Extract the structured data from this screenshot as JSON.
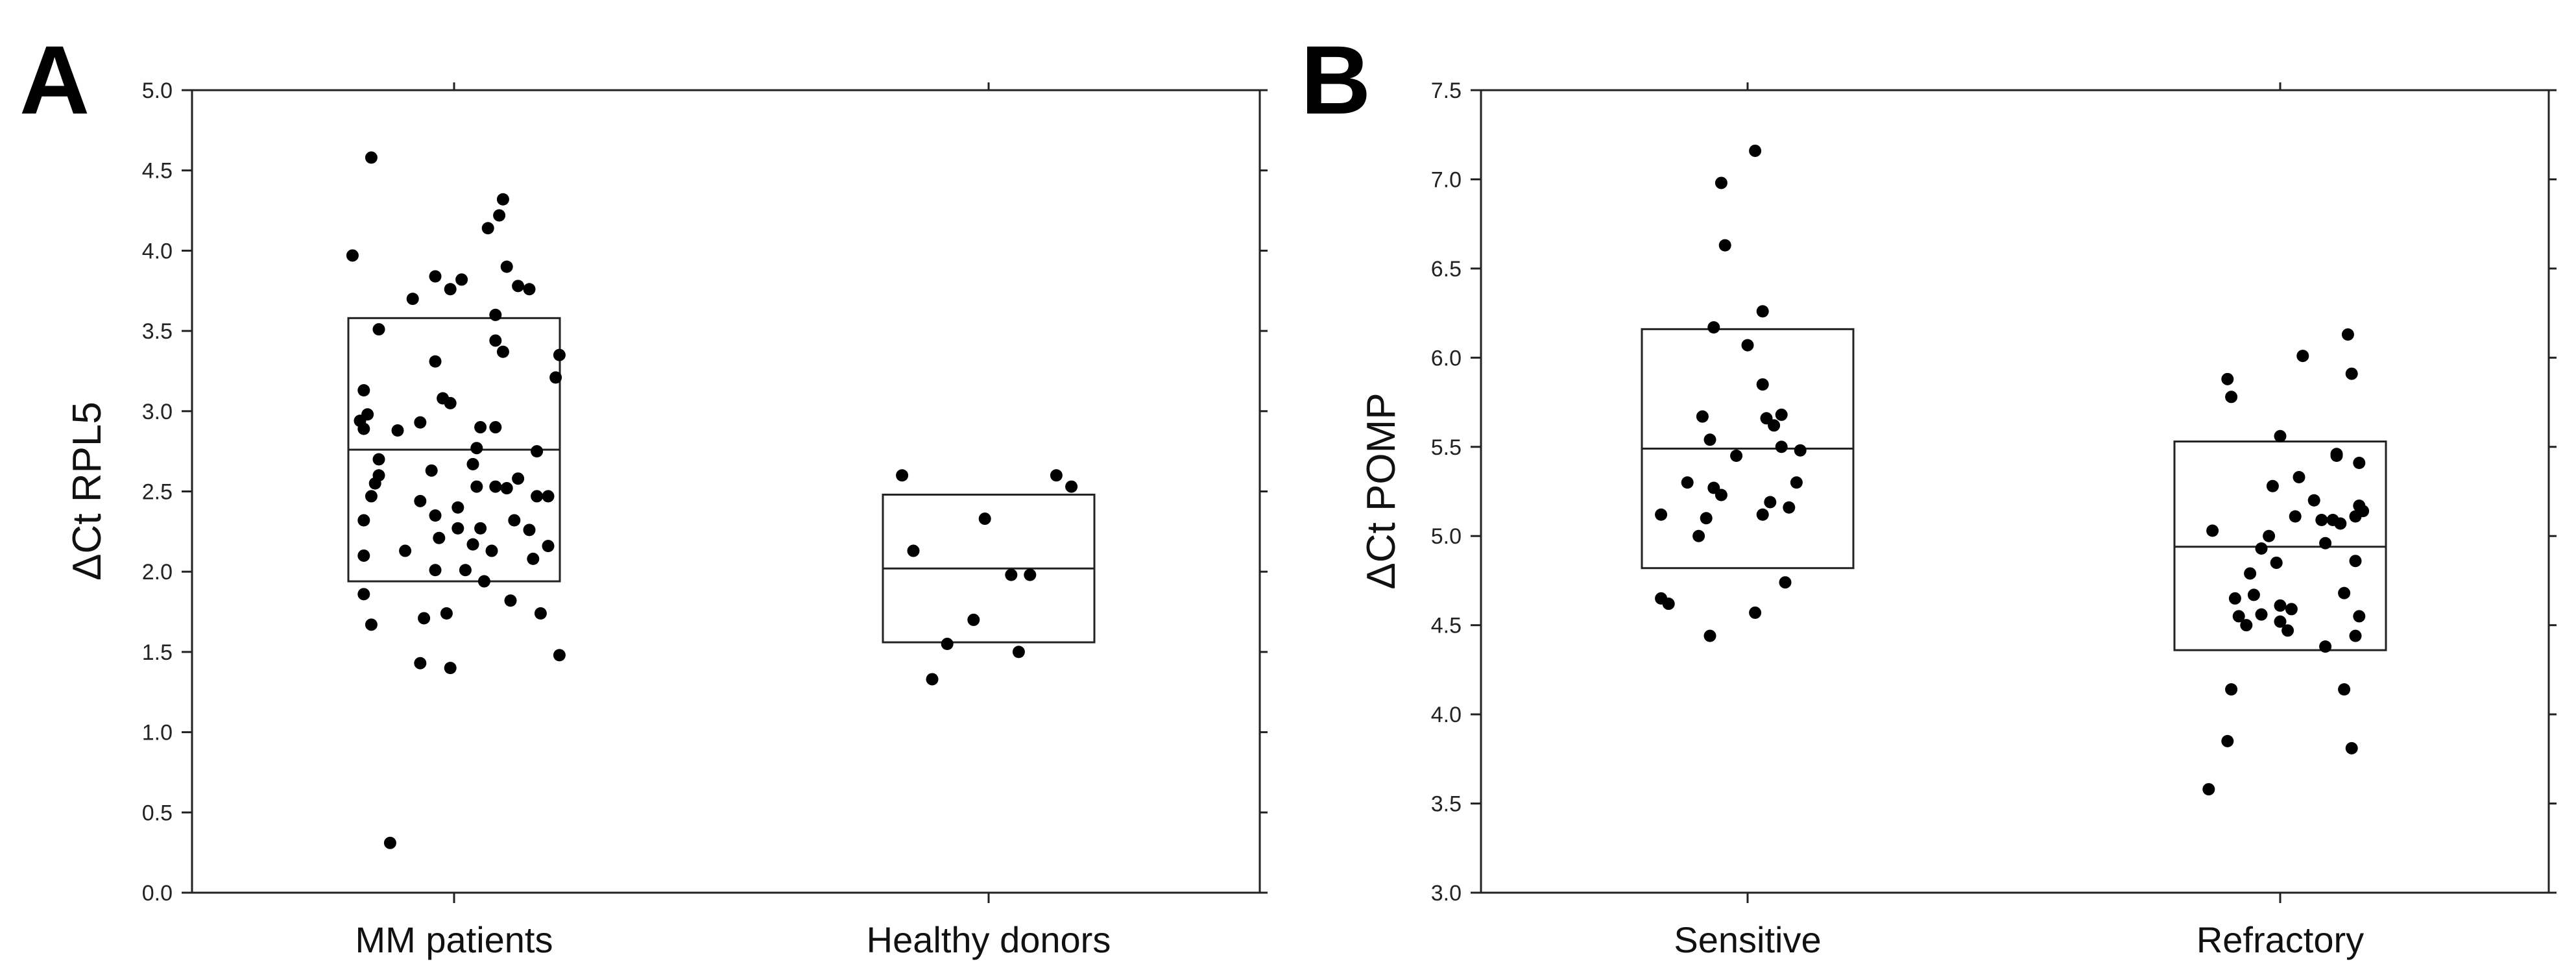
{
  "chart_data": [
    {
      "panel": "A",
      "type": "scatter",
      "ylabel": "ΔCt RPL5",
      "ylim": [
        0,
        5.0
      ],
      "yticks": [
        "0.0",
        "0.5",
        "1.0",
        "1.5",
        "2.0",
        "2.5",
        "3.0",
        "3.5",
        "4.0",
        "4.5",
        "5.0"
      ],
      "categories": [
        "MM patients",
        "Healthy donors"
      ],
      "groups": [
        {
          "name": "MM patients",
          "box": {
            "q1": 1.94,
            "median": 2.76,
            "q3": 3.58
          },
          "points": [
            {
              "dx": -0.22,
              "y": 4.58
            },
            {
              "dx": 0.13,
              "y": 4.32
            },
            {
              "dx": 0.12,
              "y": 4.22
            },
            {
              "dx": 0.09,
              "y": 4.14
            },
            {
              "dx": -0.27,
              "y": 3.97
            },
            {
              "dx": 0.14,
              "y": 3.9
            },
            {
              "dx": -0.05,
              "y": 3.84
            },
            {
              "dx": 0.02,
              "y": 3.82
            },
            {
              "dx": 0.17,
              "y": 3.78
            },
            {
              "dx": -0.01,
              "y": 3.76
            },
            {
              "dx": 0.2,
              "y": 3.76
            },
            {
              "dx": -0.11,
              "y": 3.7
            },
            {
              "dx": 0.11,
              "y": 3.6
            },
            {
              "dx": -0.2,
              "y": 3.51
            },
            {
              "dx": 0.11,
              "y": 3.44
            },
            {
              "dx": 0.13,
              "y": 3.37
            },
            {
              "dx": 0.28,
              "y": 3.35
            },
            {
              "dx": -0.05,
              "y": 3.31
            },
            {
              "dx": 0.27,
              "y": 3.21
            },
            {
              "dx": -0.24,
              "y": 3.13
            },
            {
              "dx": -0.03,
              "y": 3.08
            },
            {
              "dx": -0.01,
              "y": 3.05
            },
            {
              "dx": -0.23,
              "y": 2.98
            },
            {
              "dx": -0.25,
              "y": 2.94
            },
            {
              "dx": -0.09,
              "y": 2.93
            },
            {
              "dx": 0.07,
              "y": 2.9
            },
            {
              "dx": 0.11,
              "y": 2.9
            },
            {
              "dx": -0.24,
              "y": 2.89
            },
            {
              "dx": -0.15,
              "y": 2.88
            },
            {
              "dx": 0.06,
              "y": 2.77
            },
            {
              "dx": 0.22,
              "y": 2.75
            },
            {
              "dx": -0.2,
              "y": 2.7
            },
            {
              "dx": 0.05,
              "y": 2.67
            },
            {
              "dx": -0.06,
              "y": 2.63
            },
            {
              "dx": -0.2,
              "y": 2.6
            },
            {
              "dx": 0.17,
              "y": 2.58
            },
            {
              "dx": -0.21,
              "y": 2.55
            },
            {
              "dx": 0.06,
              "y": 2.53
            },
            {
              "dx": 0.11,
              "y": 2.53
            },
            {
              "dx": 0.14,
              "y": 2.52
            },
            {
              "dx": -0.22,
              "y": 2.47
            },
            {
              "dx": 0.22,
              "y": 2.47
            },
            {
              "dx": 0.25,
              "y": 2.47
            },
            {
              "dx": -0.09,
              "y": 2.44
            },
            {
              "dx": 0.01,
              "y": 2.4
            },
            {
              "dx": -0.05,
              "y": 2.35
            },
            {
              "dx": -0.24,
              "y": 2.32
            },
            {
              "dx": 0.16,
              "y": 2.32
            },
            {
              "dx": 0.01,
              "y": 2.27
            },
            {
              "dx": 0.07,
              "y": 2.27
            },
            {
              "dx": 0.2,
              "y": 2.26
            },
            {
              "dx": -0.04,
              "y": 2.21
            },
            {
              "dx": 0.05,
              "y": 2.17
            },
            {
              "dx": 0.25,
              "y": 2.16
            },
            {
              "dx": -0.13,
              "y": 2.13
            },
            {
              "dx": 0.1,
              "y": 2.13
            },
            {
              "dx": -0.24,
              "y": 2.1
            },
            {
              "dx": 0.21,
              "y": 2.08
            },
            {
              "dx": -0.05,
              "y": 2.01
            },
            {
              "dx": 0.03,
              "y": 2.01
            },
            {
              "dx": 0.08,
              "y": 1.94
            },
            {
              "dx": -0.24,
              "y": 1.86
            },
            {
              "dx": 0.15,
              "y": 1.82
            },
            {
              "dx": -0.02,
              "y": 1.74
            },
            {
              "dx": 0.23,
              "y": 1.74
            },
            {
              "dx": -0.08,
              "y": 1.71
            },
            {
              "dx": -0.22,
              "y": 1.67
            },
            {
              "dx": 0.28,
              "y": 1.48
            },
            {
              "dx": -0.09,
              "y": 1.43
            },
            {
              "dx": -0.01,
              "y": 1.4
            },
            {
              "dx": -0.17,
              "y": 0.31
            }
          ]
        },
        {
          "name": "Healthy donors",
          "box": {
            "q1": 1.56,
            "median": 2.02,
            "q3": 2.48
          },
          "points": [
            {
              "dx": -0.23,
              "y": 2.6
            },
            {
              "dx": 0.18,
              "y": 2.6
            },
            {
              "dx": 0.22,
              "y": 2.53
            },
            {
              "dx": -0.01,
              "y": 2.33
            },
            {
              "dx": -0.2,
              "y": 2.13
            },
            {
              "dx": 0.06,
              "y": 1.98
            },
            {
              "dx": 0.11,
              "y": 1.98
            },
            {
              "dx": -0.04,
              "y": 1.7
            },
            {
              "dx": -0.11,
              "y": 1.55
            },
            {
              "dx": 0.08,
              "y": 1.5
            },
            {
              "dx": -0.15,
              "y": 1.33
            }
          ]
        }
      ]
    },
    {
      "panel": "B",
      "type": "scatter",
      "ylabel": "ΔCt POMP",
      "ylim": [
        3.0,
        7.5
      ],
      "yticks": [
        "3.0",
        "3.5",
        "4.0",
        "4.5",
        "5.0",
        "5.5",
        "6.0",
        "6.5",
        "7.0",
        "7.5"
      ],
      "categories": [
        "Sensitive",
        "Refractory"
      ],
      "groups": [
        {
          "name": "Sensitive",
          "box": {
            "q1": 4.82,
            "median": 5.49,
            "q3": 6.16
          },
          "points": [
            {
              "dx": 0.02,
              "y": 7.16
            },
            {
              "dx": -0.07,
              "y": 6.98
            },
            {
              "dx": -0.06,
              "y": 6.63
            },
            {
              "dx": 0.04,
              "y": 6.26
            },
            {
              "dx": -0.09,
              "y": 6.17
            },
            {
              "dx": 0.0,
              "y": 6.07
            },
            {
              "dx": 0.04,
              "y": 5.85
            },
            {
              "dx": 0.09,
              "y": 5.68
            },
            {
              "dx": -0.12,
              "y": 5.67
            },
            {
              "dx": 0.05,
              "y": 5.66
            },
            {
              "dx": 0.07,
              "y": 5.62
            },
            {
              "dx": -0.1,
              "y": 5.54
            },
            {
              "dx": 0.09,
              "y": 5.5
            },
            {
              "dx": 0.14,
              "y": 5.48
            },
            {
              "dx": -0.03,
              "y": 5.45
            },
            {
              "dx": -0.16,
              "y": 5.3
            },
            {
              "dx": 0.13,
              "y": 5.3
            },
            {
              "dx": -0.09,
              "y": 5.27
            },
            {
              "dx": -0.07,
              "y": 5.23
            },
            {
              "dx": 0.06,
              "y": 5.19
            },
            {
              "dx": 0.11,
              "y": 5.16
            },
            {
              "dx": 0.04,
              "y": 5.12
            },
            {
              "dx": -0.23,
              "y": 5.12
            },
            {
              "dx": -0.11,
              "y": 5.1
            },
            {
              "dx": -0.13,
              "y": 5.0
            },
            {
              "dx": 0.1,
              "y": 4.74
            },
            {
              "dx": -0.23,
              "y": 4.65
            },
            {
              "dx": -0.21,
              "y": 4.62
            },
            {
              "dx": 0.02,
              "y": 4.57
            },
            {
              "dx": -0.1,
              "y": 4.44
            }
          ]
        },
        {
          "name": "Refractory",
          "box": {
            "q1": 4.36,
            "median": 4.94,
            "q3": 5.53
          },
          "points": [
            {
              "dx": 0.18,
              "y": 6.13
            },
            {
              "dx": 0.06,
              "y": 6.01
            },
            {
              "dx": 0.19,
              "y": 5.91
            },
            {
              "dx": -0.14,
              "y": 5.88
            },
            {
              "dx": -0.13,
              "y": 5.78
            },
            {
              "dx": 0.0,
              "y": 5.56
            },
            {
              "dx": 0.15,
              "y": 5.46
            },
            {
              "dx": 0.15,
              "y": 5.45
            },
            {
              "dx": 0.21,
              "y": 5.41
            },
            {
              "dx": 0.05,
              "y": 5.33
            },
            {
              "dx": -0.02,
              "y": 5.28
            },
            {
              "dx": 0.09,
              "y": 5.2
            },
            {
              "dx": 0.21,
              "y": 5.17
            },
            {
              "dx": 0.22,
              "y": 5.14
            },
            {
              "dx": 0.2,
              "y": 5.11
            },
            {
              "dx": 0.04,
              "y": 5.11
            },
            {
              "dx": 0.11,
              "y": 5.09
            },
            {
              "dx": 0.14,
              "y": 5.09
            },
            {
              "dx": 0.16,
              "y": 5.07
            },
            {
              "dx": -0.18,
              "y": 5.03
            },
            {
              "dx": -0.03,
              "y": 5.0
            },
            {
              "dx": 0.12,
              "y": 4.96
            },
            {
              "dx": -0.05,
              "y": 4.93
            },
            {
              "dx": 0.2,
              "y": 4.86
            },
            {
              "dx": -0.01,
              "y": 4.85
            },
            {
              "dx": -0.08,
              "y": 4.79
            },
            {
              "dx": 0.17,
              "y": 4.68
            },
            {
              "dx": -0.07,
              "y": 4.67
            },
            {
              "dx": -0.12,
              "y": 4.65
            },
            {
              "dx": 0.0,
              "y": 4.61
            },
            {
              "dx": 0.03,
              "y": 4.59
            },
            {
              "dx": -0.05,
              "y": 4.56
            },
            {
              "dx": -0.11,
              "y": 4.55
            },
            {
              "dx": 0.21,
              "y": 4.55
            },
            {
              "dx": 0.0,
              "y": 4.52
            },
            {
              "dx": -0.09,
              "y": 4.5
            },
            {
              "dx": 0.02,
              "y": 4.47
            },
            {
              "dx": 0.2,
              "y": 4.44
            },
            {
              "dx": 0.12,
              "y": 4.38
            },
            {
              "dx": -0.13,
              "y": 4.14
            },
            {
              "dx": 0.17,
              "y": 4.14
            },
            {
              "dx": -0.14,
              "y": 3.85
            },
            {
              "dx": 0.19,
              "y": 3.81
            },
            {
              "dx": -0.19,
              "y": 3.58
            }
          ]
        }
      ]
    }
  ]
}
